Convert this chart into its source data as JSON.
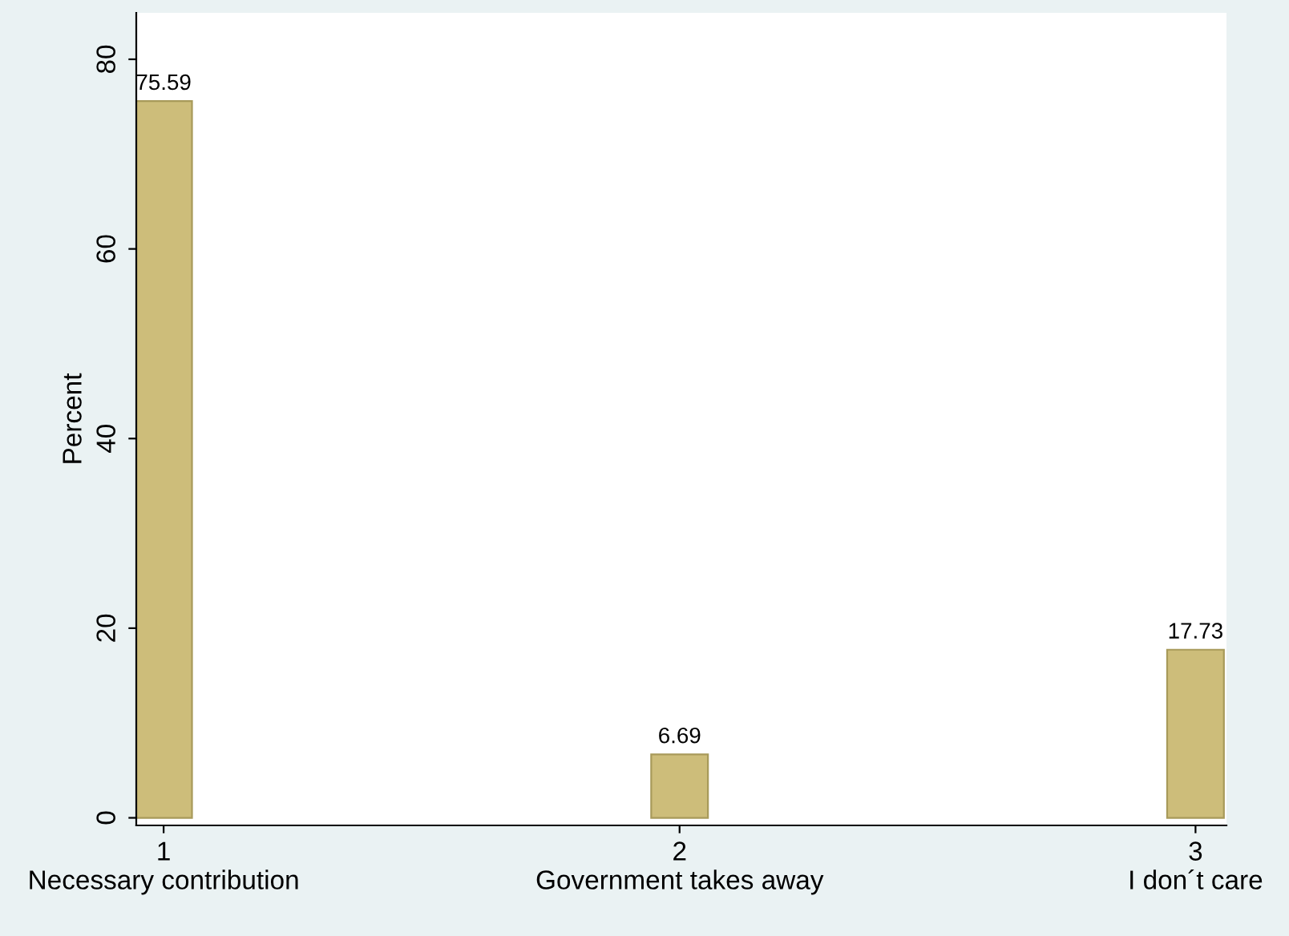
{
  "chart_data": {
    "type": "bar",
    "ylabel": "Percent",
    "x": [
      1,
      2,
      3
    ],
    "values": [
      75.59,
      6.69,
      17.73
    ],
    "color": "#cdbd7a",
    "xlim": [
      0.947,
      3.06
    ],
    "xticks": [
      {
        "value": 1,
        "label": "1\nNecessary contribution"
      },
      {
        "value": 2,
        "label": "2\nGovernment takes away"
      },
      {
        "value": 3,
        "label": "3\nI don´t care"
      }
    ],
    "ylim": [
      -0.8,
      84.9
    ],
    "yticks": [
      0,
      20,
      40,
      60,
      80
    ],
    "data_labels": true,
    "grid": false
  }
}
